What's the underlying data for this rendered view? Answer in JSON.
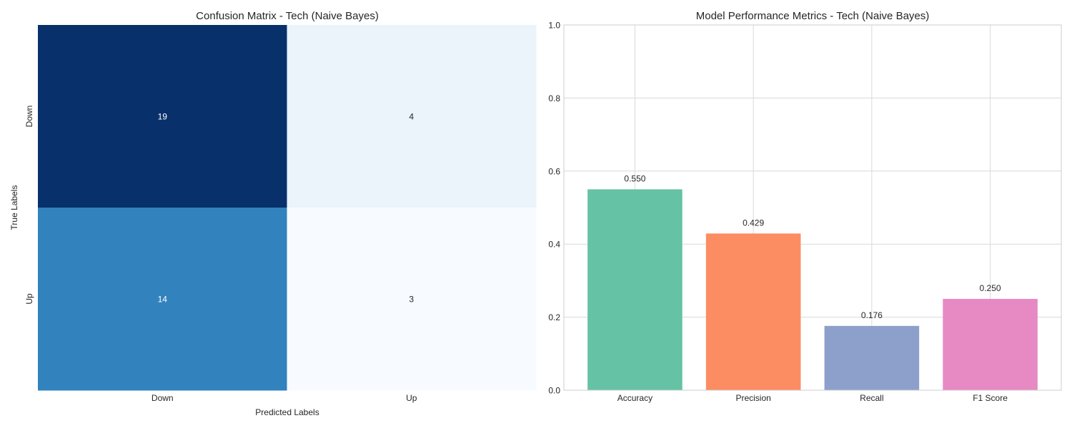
{
  "chart_data": [
    {
      "type": "heatmap",
      "title": "Confusion Matrix - Tech (Naive Bayes)",
      "xlabel": "Predicted Labels",
      "ylabel": "True Labels",
      "x_categories": [
        "Down",
        "Up"
      ],
      "y_categories": [
        "Down",
        "Up"
      ],
      "values": [
        [
          19,
          4
        ],
        [
          14,
          3
        ]
      ],
      "colormap": "Blues",
      "colorbar": false
    },
    {
      "type": "bar",
      "title": "Model Performance Metrics - Tech (Naive Bayes)",
      "xlabel": "",
      "ylabel": "",
      "categories": [
        "Accuracy",
        "Precision",
        "Recall",
        "F1 Score"
      ],
      "values": [
        0.55,
        0.429,
        0.176,
        0.25
      ],
      "value_labels": [
        "0.550",
        "0.429",
        "0.176",
        "0.250"
      ],
      "colors": [
        "#66c2a5",
        "#fc8d62",
        "#8da0cb",
        "#e78ac3"
      ],
      "ylim": [
        0,
        1.0
      ],
      "yticks": [
        0.0,
        0.2,
        0.4,
        0.6,
        0.8,
        1.0
      ],
      "ytick_labels": [
        "0.0",
        "0.2",
        "0.4",
        "0.6",
        "0.8",
        "1.0"
      ],
      "grid": true
    }
  ]
}
